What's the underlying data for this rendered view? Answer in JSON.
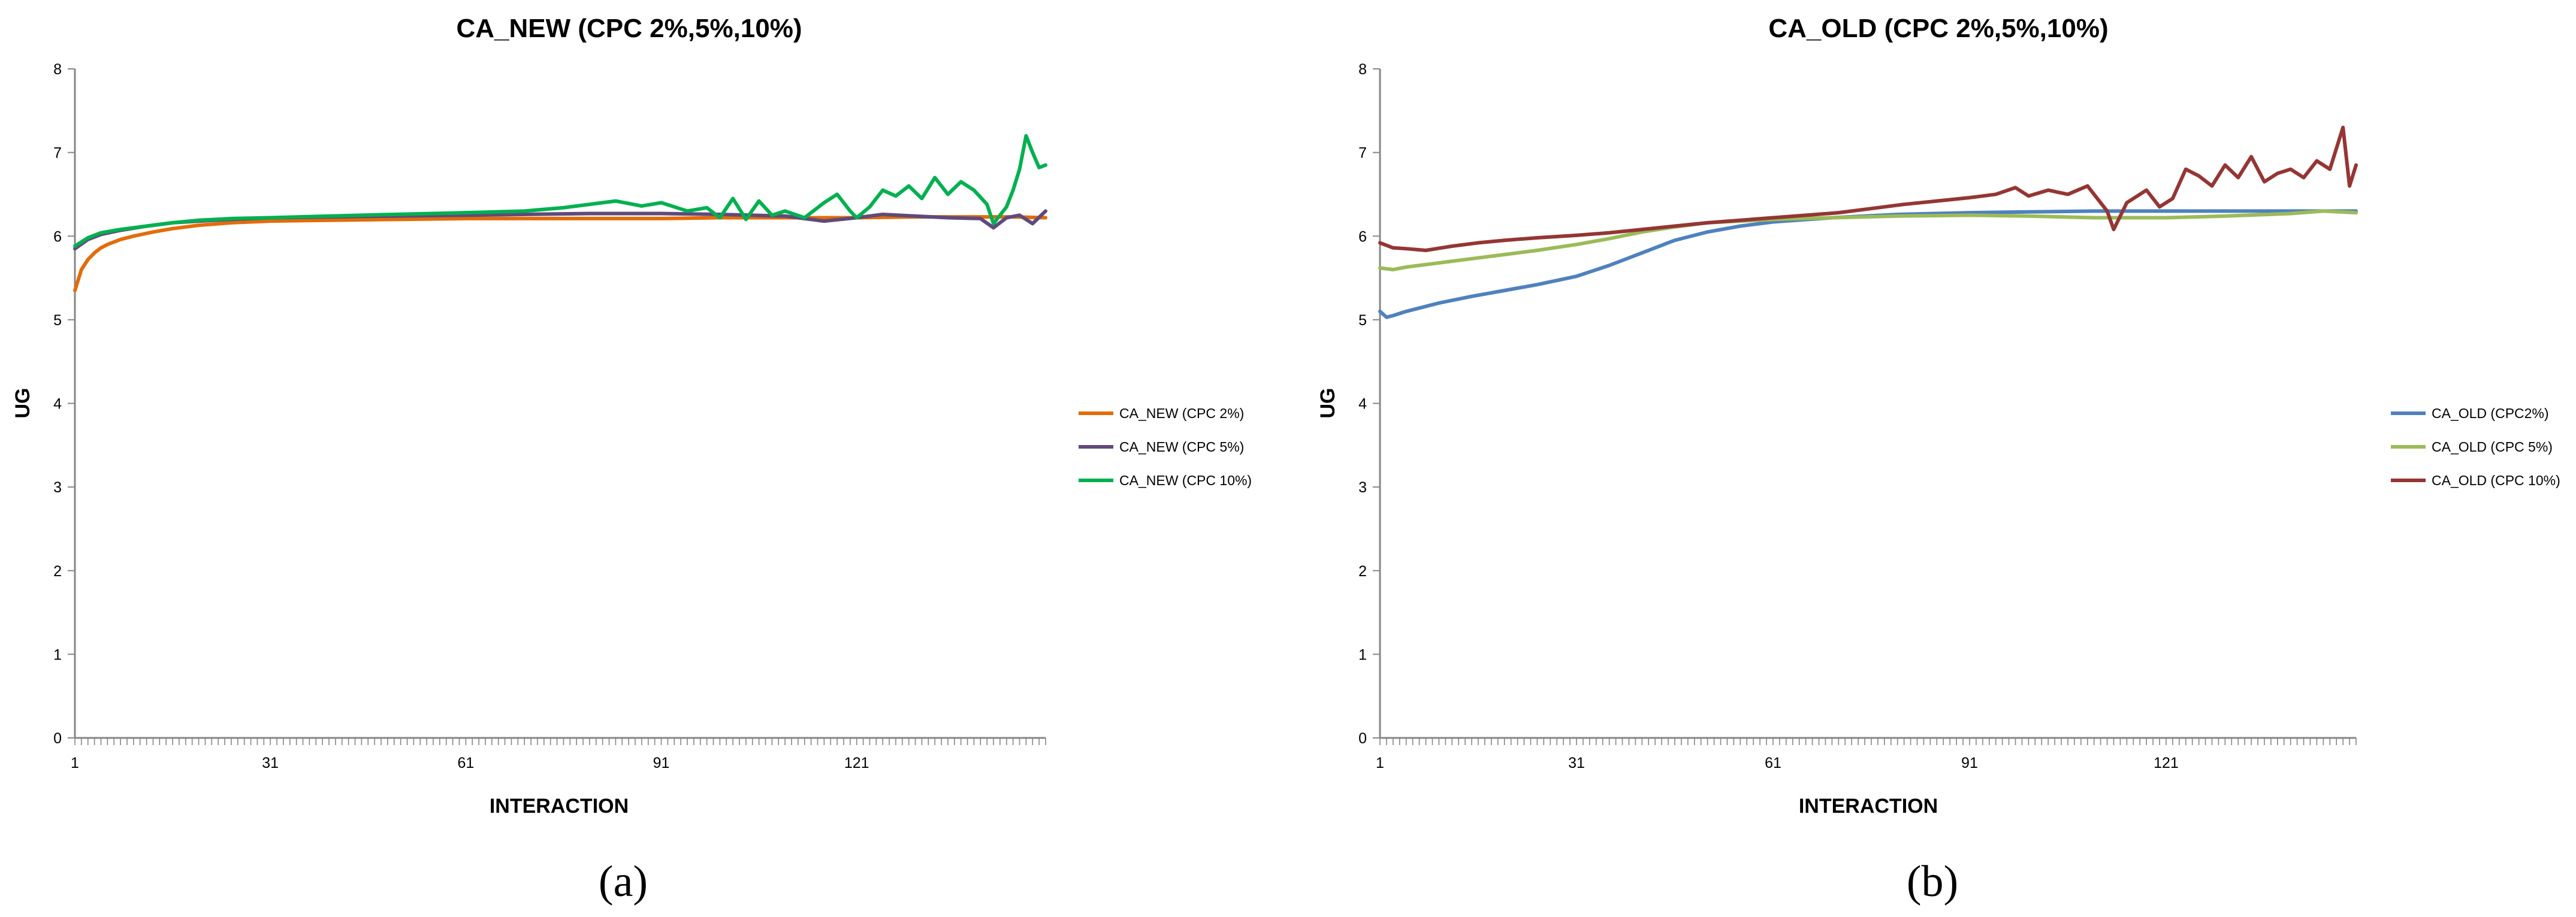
{
  "chart_data": [
    {
      "type": "line",
      "caption": "(a)",
      "title": "CA_NEW (CPC 2%,5%,10%)",
      "xlabel": "INTERACTION",
      "ylabel": "UG",
      "xlim": [
        1,
        150
      ],
      "ylim": [
        0,
        8
      ],
      "x_ticks": [
        1,
        31,
        61,
        91,
        121
      ],
      "y_ticks": [
        0,
        1,
        2,
        3,
        4,
        5,
        6,
        7,
        8
      ],
      "grid": false,
      "legend_position": "right",
      "series": [
        {
          "name": "CA_NEW (CPC 2%)",
          "color": "#E36C0A",
          "points": [
            [
              1,
              5.35
            ],
            [
              2,
              5.6
            ],
            [
              3,
              5.72
            ],
            [
              4,
              5.8
            ],
            [
              5,
              5.86
            ],
            [
              6,
              5.9
            ],
            [
              8,
              5.96
            ],
            [
              10,
              6.0
            ],
            [
              13,
              6.05
            ],
            [
              16,
              6.09
            ],
            [
              20,
              6.13
            ],
            [
              25,
              6.16
            ],
            [
              31,
              6.18
            ],
            [
              40,
              6.19
            ],
            [
              50,
              6.2
            ],
            [
              61,
              6.21
            ],
            [
              70,
              6.21
            ],
            [
              80,
              6.21
            ],
            [
              91,
              6.21
            ],
            [
              100,
              6.22
            ],
            [
              110,
              6.22
            ],
            [
              121,
              6.22
            ],
            [
              130,
              6.23
            ],
            [
              140,
              6.23
            ],
            [
              145,
              6.23
            ],
            [
              150,
              6.22
            ]
          ]
        },
        {
          "name": "CA_NEW (CPC 5%)",
          "color": "#604A7B",
          "points": [
            [
              1,
              5.85
            ],
            [
              3,
              5.96
            ],
            [
              5,
              6.02
            ],
            [
              8,
              6.07
            ],
            [
              12,
              6.12
            ],
            [
              16,
              6.16
            ],
            [
              20,
              6.18
            ],
            [
              25,
              6.2
            ],
            [
              31,
              6.22
            ],
            [
              40,
              6.23
            ],
            [
              50,
              6.24
            ],
            [
              61,
              6.25
            ],
            [
              70,
              6.26
            ],
            [
              80,
              6.27
            ],
            [
              91,
              6.27
            ],
            [
              100,
              6.26
            ],
            [
              110,
              6.24
            ],
            [
              116,
              6.18
            ],
            [
              121,
              6.22
            ],
            [
              125,
              6.26
            ],
            [
              130,
              6.24
            ],
            [
              135,
              6.22
            ],
            [
              140,
              6.21
            ],
            [
              142,
              6.1
            ],
            [
              144,
              6.22
            ],
            [
              146,
              6.25
            ],
            [
              148,
              6.15
            ],
            [
              150,
              6.3
            ]
          ]
        },
        {
          "name": "CA_NEW (CPC 10%)",
          "color": "#00B050",
          "points": [
            [
              1,
              5.88
            ],
            [
              3,
              5.98
            ],
            [
              5,
              6.04
            ],
            [
              8,
              6.08
            ],
            [
              12,
              6.12
            ],
            [
              16,
              6.16
            ],
            [
              20,
              6.19
            ],
            [
              25,
              6.21
            ],
            [
              31,
              6.22
            ],
            [
              40,
              6.24
            ],
            [
              50,
              6.26
            ],
            [
              61,
              6.28
            ],
            [
              70,
              6.3
            ],
            [
              76,
              6.34
            ],
            [
              80,
              6.38
            ],
            [
              84,
              6.42
            ],
            [
              88,
              6.36
            ],
            [
              91,
              6.4
            ],
            [
              95,
              6.3
            ],
            [
              98,
              6.34
            ],
            [
              100,
              6.22
            ],
            [
              102,
              6.45
            ],
            [
              104,
              6.2
            ],
            [
              106,
              6.42
            ],
            [
              108,
              6.25
            ],
            [
              110,
              6.3
            ],
            [
              113,
              6.22
            ],
            [
              116,
              6.4
            ],
            [
              118,
              6.5
            ],
            [
              120,
              6.3
            ],
            [
              121,
              6.22
            ],
            [
              123,
              6.35
            ],
            [
              125,
              6.55
            ],
            [
              127,
              6.48
            ],
            [
              129,
              6.6
            ],
            [
              131,
              6.45
            ],
            [
              133,
              6.7
            ],
            [
              135,
              6.5
            ],
            [
              137,
              6.65
            ],
            [
              139,
              6.55
            ],
            [
              141,
              6.38
            ],
            [
              142,
              6.15
            ],
            [
              143,
              6.25
            ],
            [
              144,
              6.35
            ],
            [
              145,
              6.55
            ],
            [
              146,
              6.8
            ],
            [
              147,
              7.2
            ],
            [
              148,
              7.0
            ],
            [
              149,
              6.82
            ],
            [
              150,
              6.85
            ]
          ]
        }
      ]
    },
    {
      "type": "line",
      "caption": "(b)",
      "title": "CA_OLD (CPC 2%,5%,10%)",
      "xlabel": "INTERACTION",
      "ylabel": "UG",
      "xlim": [
        1,
        150
      ],
      "ylim": [
        0,
        8
      ],
      "x_ticks": [
        1,
        31,
        61,
        91,
        121
      ],
      "y_ticks": [
        0,
        1,
        2,
        3,
        4,
        5,
        6,
        7,
        8
      ],
      "grid": false,
      "legend_position": "right",
      "series": [
        {
          "name": "CA_OLD (CPC2%)",
          "color": "#4F81BD",
          "points": [
            [
              1,
              5.1
            ],
            [
              2,
              5.03
            ],
            [
              3,
              5.05
            ],
            [
              5,
              5.1
            ],
            [
              10,
              5.2
            ],
            [
              15,
              5.28
            ],
            [
              20,
              5.35
            ],
            [
              25,
              5.42
            ],
            [
              31,
              5.52
            ],
            [
              36,
              5.65
            ],
            [
              41,
              5.8
            ],
            [
              46,
              5.95
            ],
            [
              51,
              6.05
            ],
            [
              56,
              6.12
            ],
            [
              61,
              6.17
            ],
            [
              70,
              6.22
            ],
            [
              80,
              6.26
            ],
            [
              91,
              6.28
            ],
            [
              100,
              6.29
            ],
            [
              110,
              6.3
            ],
            [
              121,
              6.3
            ],
            [
              130,
              6.3
            ],
            [
              140,
              6.3
            ],
            [
              150,
              6.3
            ]
          ]
        },
        {
          "name": "CA_OLD (CPC 5%)",
          "color": "#9BBB59",
          "points": [
            [
              1,
              5.62
            ],
            [
              3,
              5.6
            ],
            [
              5,
              5.63
            ],
            [
              10,
              5.68
            ],
            [
              15,
              5.73
            ],
            [
              20,
              5.78
            ],
            [
              25,
              5.83
            ],
            [
              31,
              5.9
            ],
            [
              36,
              5.97
            ],
            [
              41,
              6.05
            ],
            [
              46,
              6.11
            ],
            [
              51,
              6.16
            ],
            [
              56,
              6.18
            ],
            [
              61,
              6.2
            ],
            [
              70,
              6.22
            ],
            [
              80,
              6.24
            ],
            [
              91,
              6.25
            ],
            [
              100,
              6.24
            ],
            [
              110,
              6.22
            ],
            [
              121,
              6.22
            ],
            [
              130,
              6.24
            ],
            [
              140,
              6.27
            ],
            [
              145,
              6.3
            ],
            [
              150,
              6.28
            ]
          ]
        },
        {
          "name": "CA_OLD (CPC 10%)",
          "color": "#943634",
          "points": [
            [
              1,
              5.92
            ],
            [
              3,
              5.86
            ],
            [
              5,
              5.85
            ],
            [
              8,
              5.83
            ],
            [
              12,
              5.88
            ],
            [
              16,
              5.92
            ],
            [
              20,
              5.95
            ],
            [
              25,
              5.98
            ],
            [
              31,
              6.01
            ],
            [
              36,
              6.04
            ],
            [
              41,
              6.08
            ],
            [
              46,
              6.12
            ],
            [
              51,
              6.16
            ],
            [
              56,
              6.19
            ],
            [
              61,
              6.22
            ],
            [
              66,
              6.25
            ],
            [
              71,
              6.28
            ],
            [
              76,
              6.33
            ],
            [
              81,
              6.38
            ],
            [
              86,
              6.42
            ],
            [
              91,
              6.46
            ],
            [
              95,
              6.5
            ],
            [
              98,
              6.58
            ],
            [
              100,
              6.48
            ],
            [
              103,
              6.55
            ],
            [
              106,
              6.5
            ],
            [
              109,
              6.6
            ],
            [
              112,
              6.3
            ],
            [
              113,
              6.08
            ],
            [
              115,
              6.4
            ],
            [
              118,
              6.55
            ],
            [
              120,
              6.35
            ],
            [
              122,
              6.45
            ],
            [
              124,
              6.8
            ],
            [
              126,
              6.72
            ],
            [
              128,
              6.6
            ],
            [
              130,
              6.85
            ],
            [
              132,
              6.7
            ],
            [
              134,
              6.95
            ],
            [
              136,
              6.65
            ],
            [
              138,
              6.75
            ],
            [
              140,
              6.8
            ],
            [
              142,
              6.7
            ],
            [
              144,
              6.9
            ],
            [
              146,
              6.8
            ],
            [
              148,
              7.3
            ],
            [
              149,
              6.6
            ],
            [
              150,
              6.85
            ]
          ]
        }
      ]
    }
  ]
}
